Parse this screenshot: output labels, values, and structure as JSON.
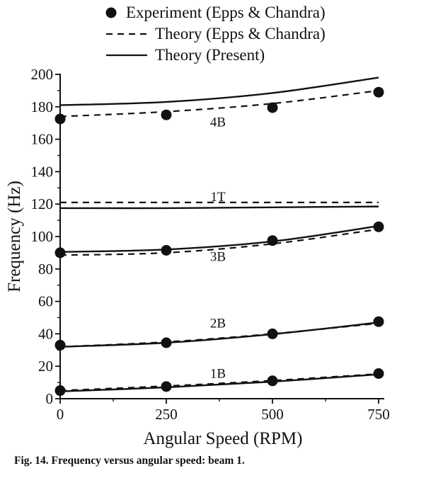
{
  "chart_data": {
    "type": "line",
    "xlabel": "Angular Speed (RPM)",
    "ylabel": "Frequency (Hz)",
    "xlim": [
      0,
      750
    ],
    "ylim": [
      0,
      200
    ],
    "x_ticks": [
      0,
      250,
      500,
      750
    ],
    "y_ticks": [
      0,
      20,
      40,
      60,
      80,
      100,
      120,
      140,
      160,
      180,
      200
    ],
    "grid": false,
    "legend_position": "top",
    "legend": [
      {
        "marker": "filled-circle",
        "label": "Experiment (Epps & Chandra)"
      },
      {
        "marker": "dashed-line",
        "label": "Theory (Epps & Chandra)"
      },
      {
        "marker": "solid-line",
        "label": "Theory (Present)"
      }
    ],
    "series": [
      {
        "name": "Experiment (Epps & Chandra)",
        "style": "points",
        "modes": {
          "1B": [
            [
              0,
              5
            ],
            [
              250,
              7.5
            ],
            [
              500,
              11
            ],
            [
              750,
              15.5
            ]
          ],
          "2B": [
            [
              0,
              33
            ],
            [
              250,
              34.5
            ],
            [
              500,
              40
            ],
            [
              750,
              47.5
            ]
          ],
          "3B": [
            [
              0,
              90
            ],
            [
              250,
              91.5
            ],
            [
              500,
              97.5
            ],
            [
              750,
              106
            ]
          ],
          "4B": [
            [
              0,
              172.5
            ],
            [
              250,
              175
            ],
            [
              500,
              179.5
            ],
            [
              750,
              189
            ]
          ]
        }
      },
      {
        "name": "Theory (Epps & Chandra)",
        "style": "dashed",
        "modes": {
          "1B": [
            [
              0,
              5
            ],
            [
              250,
              7.8
            ],
            [
              500,
              11.2
            ],
            [
              750,
              15.3
            ]
          ],
          "2B": [
            [
              0,
              32
            ],
            [
              250,
              35
            ],
            [
              500,
              40
            ],
            [
              750,
              46.5
            ]
          ],
          "3B": [
            [
              0,
              88.5
            ],
            [
              250,
              90
            ],
            [
              500,
              95.5
            ],
            [
              750,
              104.5
            ]
          ],
          "1T": [
            [
              0,
              121
            ],
            [
              250,
              121
            ],
            [
              500,
              121
            ],
            [
              750,
              121
            ]
          ],
          "4B": [
            [
              0,
              174
            ],
            [
              250,
              177
            ],
            [
              500,
              182
            ],
            [
              750,
              190
            ]
          ]
        }
      },
      {
        "name": "Theory (Present)",
        "style": "solid",
        "modes": {
          "1B": [
            [
              0,
              4.5
            ],
            [
              250,
              7
            ],
            [
              500,
              10.5
            ],
            [
              750,
              15
            ]
          ],
          "2B": [
            [
              0,
              32
            ],
            [
              250,
              34.5
            ],
            [
              500,
              39.8
            ],
            [
              750,
              47
            ]
          ],
          "3B": [
            [
              0,
              90.5
            ],
            [
              250,
              92
            ],
            [
              500,
              97
            ],
            [
              750,
              106.5
            ]
          ],
          "1T": [
            [
              0,
              117.5
            ],
            [
              250,
              117.5
            ],
            [
              500,
              118
            ],
            [
              750,
              118.5
            ]
          ],
          "4B": [
            [
              0,
              181
            ],
            [
              250,
              183
            ],
            [
              500,
              188.5
            ],
            [
              750,
              198
            ]
          ]
        }
      }
    ],
    "mode_labels": [
      {
        "text": "4B",
        "x": 555,
        "y": 171
      },
      {
        "text": "1T",
        "x": 555,
        "y": 125
      },
      {
        "text": "3B",
        "x": 555,
        "y": 88
      },
      {
        "text": "2B",
        "x": 555,
        "y": 47
      },
      {
        "text": "1B",
        "x": 555,
        "y": 16
      }
    ]
  },
  "caption": "Fig. 14. Frequency versus angular speed: beam 1."
}
